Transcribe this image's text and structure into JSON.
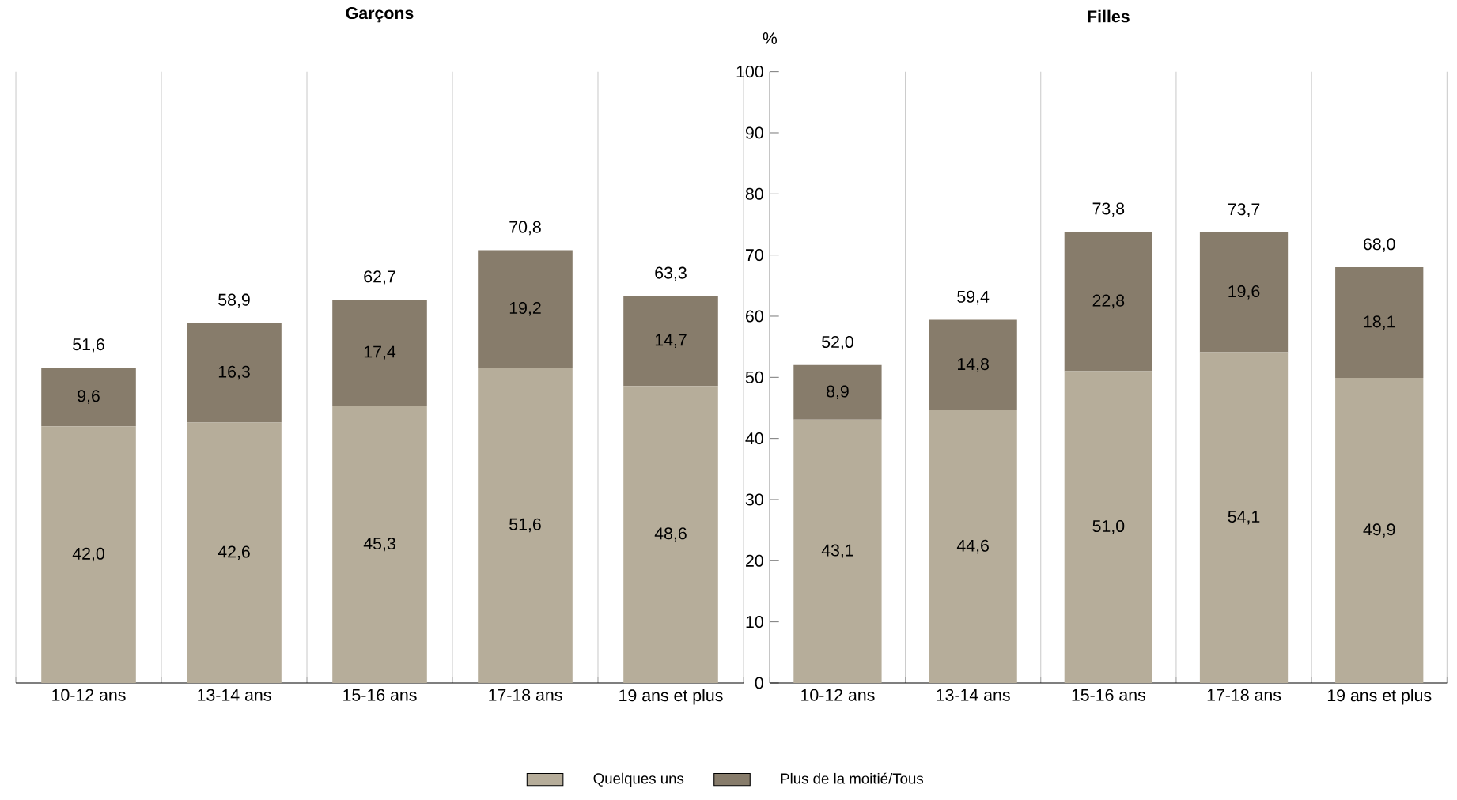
{
  "chart_data": [
    {
      "type": "bar",
      "title": "Garçons",
      "stacked": true,
      "grid": "x",
      "tick_labels": "x",
      "categories": [
        "10-12 ans",
        "13-14 ans",
        "15-16 ans",
        "17-18 ans",
        "19 ans et plus"
      ],
      "ylim": [
        0,
        100
      ],
      "yticks": [
        0,
        10,
        20,
        30,
        40,
        50,
        60,
        70,
        80,
        90,
        100
      ],
      "series": [
        {
          "color": "#b6ad9a",
          "values": [
            42.0,
            42.6,
            45.3,
            51.6,
            48.6
          ],
          "value_labels": [
            "42,0",
            "42,6",
            "45,3",
            "51,6",
            "48,6"
          ]
        },
        {
          "color": "#877c6b",
          "values": [
            9.6,
            16.3,
            17.4,
            19.2,
            14.7
          ],
          "value_labels": [
            "9,6",
            "16,3",
            "17,4",
            "19,2",
            "14,7"
          ]
        }
      ],
      "totals": [
        "51,6",
        "58,9",
        "62,7",
        "70,8",
        "63,3"
      ]
    },
    {
      "type": "bar",
      "title": "Filles",
      "ylabel": "%",
      "stacked": true,
      "grid": "x",
      "legend": "bottom",
      "categories": [
        "10-12 ans",
        "13-14 ans",
        "15-16 ans",
        "17-18 ans",
        "19 ans et plus"
      ],
      "ylim": [
        0,
        100
      ],
      "yticks": [
        0,
        10,
        20,
        30,
        40,
        50,
        60,
        70,
        80,
        90,
        100
      ],
      "series": [
        {
          "name": "Quelques uns",
          "color": "#b6ad9a",
          "values": [
            43.1,
            44.6,
            51.0,
            54.1,
            49.9
          ],
          "value_labels": [
            "43,1",
            "44,6",
            "51,0",
            "54,1",
            "49,9"
          ]
        },
        {
          "name": "Plus de la moitié/Tous",
          "color": "#877c6b",
          "values": [
            8.9,
            14.8,
            22.8,
            19.6,
            18.1
          ],
          "value_labels": [
            "8,9",
            "14,8",
            "22,8",
            "19,6",
            "18,1"
          ]
        }
      ],
      "totals": [
        "52,0",
        "59,4",
        "73,8",
        "73,7",
        "68,0"
      ]
    }
  ]
}
